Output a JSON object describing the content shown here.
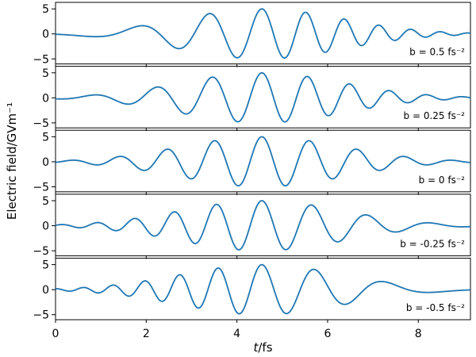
{
  "chart_data": {
    "type": "line",
    "xlabel": "t/fs",
    "xlabel_italic": "t",
    "xlabel_unit": "/fs",
    "ylabel": "Electric field/GVm⁻¹",
    "xlim": [
      0,
      9.15
    ],
    "ylim": [
      -6,
      6.3
    ],
    "xticks": [
      "0",
      "2",
      "4",
      "6",
      "8"
    ],
    "xtick_values": [
      0,
      2,
      4,
      6,
      8
    ],
    "yticks": [
      "5",
      "0",
      "−5"
    ],
    "ytick_values": [
      5,
      0,
      -5
    ],
    "line_color": "#1f77b4",
    "grid": false,
    "pulse": {
      "amplitude": 5.0,
      "center_fs": 4.55,
      "duration_fs": 4.2,
      "omega0_rad_per_fs": 6.0
    },
    "panels": [
      {
        "chirp_b": 0.5,
        "annotation": "b = 0.5 fs⁻²"
      },
      {
        "chirp_b": 0.25,
        "annotation": "b = 0.25 fs⁻²"
      },
      {
        "chirp_b": 0,
        "annotation": "b = 0 fs⁻²"
      },
      {
        "chirp_b": -0.25,
        "annotation": "b = -0.25 fs⁻²"
      },
      {
        "chirp_b": -0.5,
        "annotation": "b = -0.5 fs⁻²"
      }
    ]
  }
}
